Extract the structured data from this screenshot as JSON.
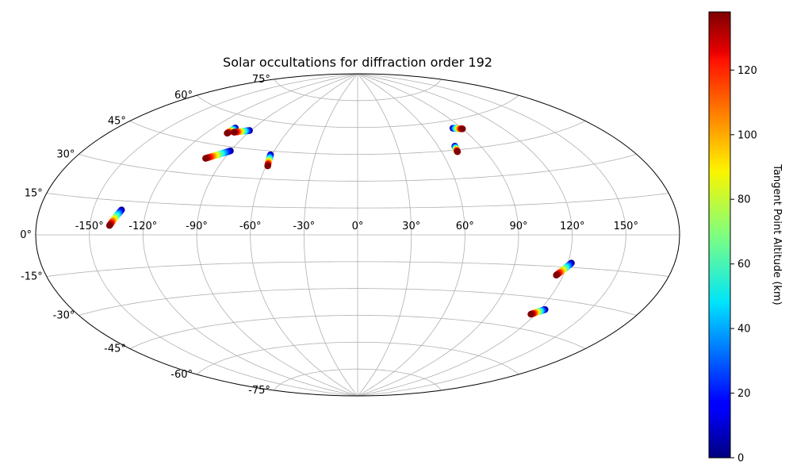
{
  "chart_data": {
    "type": "scatter",
    "projection": "aitoff",
    "title": "Solar occultations for diffraction order 192",
    "xlabel": "",
    "ylabel": "",
    "grid": true,
    "xlim": [
      -180,
      180
    ],
    "ylim": [
      -90,
      90
    ],
    "lon_ticks": [
      -150,
      -120,
      -90,
      -60,
      -30,
      0,
      30,
      60,
      90,
      120,
      150
    ],
    "lon_tick_labels": [
      "-150°",
      "-120°",
      "-90°",
      "-60°",
      "-30°",
      "0°",
      "30°",
      "60°",
      "90°",
      "120°",
      "150°"
    ],
    "lat_ticks": [
      75,
      60,
      45,
      30,
      15,
      0,
      -15,
      -30,
      -45,
      -60,
      -75
    ],
    "lat_tick_labels": [
      "75°",
      "60°",
      "45°",
      "30°",
      "15°",
      "0°",
      "-15°",
      "-30°",
      "-45°",
      "-60°",
      "-75°"
    ],
    "colormap": "jet",
    "colorbar": {
      "label": "Tangent Point Altitude (km)",
      "range": [
        0,
        138
      ],
      "ticks": [
        0,
        20,
        40,
        60,
        80,
        100,
        120
      ],
      "tick_labels": [
        "0",
        "20",
        "40",
        "60",
        "80",
        "100",
        "120"
      ]
    },
    "series": [
      {
        "lon_start": -134,
        "lat_start": 11,
        "lon_end": -139,
        "lat_end": 4,
        "alt_start": 0,
        "alt_end": 138
      },
      {
        "lon_start": -104,
        "lat_start": 54,
        "lon_end": -105,
        "lat_end": 51,
        "alt_start": 0,
        "alt_end": 138
      },
      {
        "lon_start": -91,
        "lat_start": 54,
        "lon_end": -101,
        "lat_end": 52,
        "alt_start": 0,
        "alt_end": 138
      },
      {
        "lon_start": -90,
        "lat_start": 43,
        "lon_end": -102,
        "lat_end": 38,
        "alt_start": 0,
        "alt_end": 138
      },
      {
        "lon_start": -61,
        "lat_start": 43,
        "lon_end": -59,
        "lat_end": 37,
        "alt_start": 0,
        "alt_end": 138
      },
      {
        "lon_start": 72,
        "lat_start": 47,
        "lon_end": 71,
        "lat_end": 44,
        "alt_start": 0,
        "alt_end": 138
      },
      {
        "lon_start": 83,
        "lat_start": 56,
        "lon_end": 90,
        "lat_end": 55,
        "alt_start": 0,
        "alt_end": 138
      },
      {
        "lon_start": 122,
        "lat_start": -13,
        "lon_end": 116,
        "lat_end": -19,
        "alt_start": 0,
        "alt_end": 138
      },
      {
        "lon_start": 123,
        "lat_start": -35,
        "lon_end": 117,
        "lat_end": -38,
        "alt_start": 0,
        "alt_end": 138
      }
    ]
  }
}
